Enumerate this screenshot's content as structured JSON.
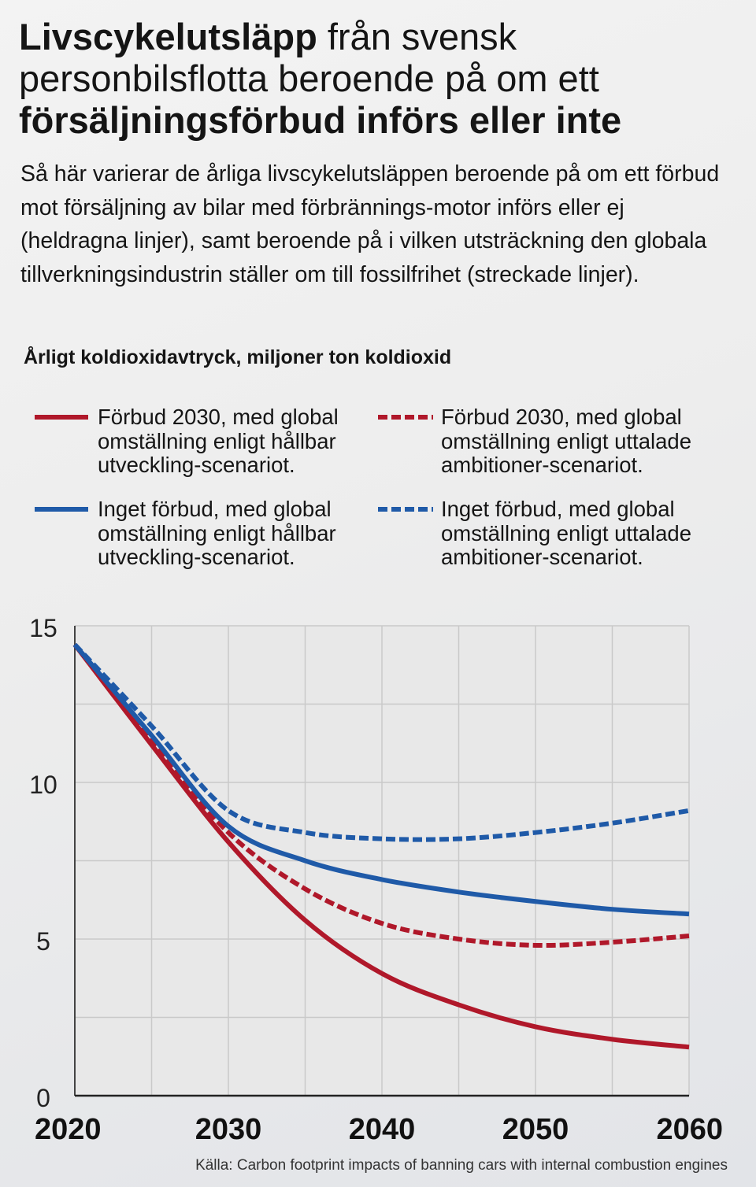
{
  "header": {
    "title_part1": "Livscykelutsläpp",
    "title_part2": " från svensk personbilsflotta beroende på om ett ",
    "title_part3": "försäljningsförbud införs eller inte",
    "subtitle": "Så här varierar de årliga livscykelutsläppen beroende på om ett förbud mot försäljning av bilar med förbrännings-motor införs eller ej (heldragna linjer), samt beroende på i vilken utsträckning den globala tillverkningsindustrin ställer om till fossilfrihet (streckade linjer).",
    "unit_label": "Årligt koldioxidavtryck, miljoner ton koldioxid"
  },
  "legend": [
    {
      "label": "Förbud 2030, med global\nomställning enligt hållbar\nutveckling-scenariot.",
      "color": "#b0182a",
      "dashed": false
    },
    {
      "label": "Förbud 2030, med global\nomställning enligt uttalade\nambitioner-scenariot.",
      "color": "#b0182a",
      "dashed": true
    },
    {
      "label": "Inget förbud, med global\nomställning enligt hållbar\nutveckling-scenariot.",
      "color": "#1f5aa8",
      "dashed": false
    },
    {
      "label": "Inget förbud, med global\nomställning enligt uttalade\nambitioner-scenariot.",
      "color": "#1f5aa8",
      "dashed": true
    }
  ],
  "chart_data": {
    "type": "line",
    "x_ticks": [
      2020,
      2030,
      2040,
      2050,
      2060
    ],
    "y_ticks": [
      0,
      5,
      10,
      15
    ],
    "xlim": [
      2020,
      2060
    ],
    "ylim": [
      0,
      15
    ],
    "grid": true,
    "x": [
      2020,
      2025,
      2030,
      2035,
      2040,
      2045,
      2050,
      2055,
      2060
    ],
    "series": [
      {
        "name": "Förbud 2030, med global omställning enligt hållbar utveckling-scenariot.",
        "color": "#b0182a",
        "dashed": false,
        "values": [
          14.4,
          11.2,
          8.1,
          5.6,
          3.9,
          2.9,
          2.2,
          1.8,
          1.55
        ]
      },
      {
        "name": "Förbud 2030, med global omställning enligt uttalade ambitioner-scenariot.",
        "color": "#b0182a",
        "dashed": true,
        "values": [
          14.4,
          11.3,
          8.4,
          6.6,
          5.5,
          5.0,
          4.8,
          4.9,
          5.1
        ]
      },
      {
        "name": "Inget förbud, med global omställning enligt hållbar utveckling-scenariot.",
        "color": "#1f5aa8",
        "dashed": false,
        "values": [
          14.4,
          11.5,
          8.6,
          7.5,
          6.9,
          6.5,
          6.2,
          5.95,
          5.8
        ]
      },
      {
        "name": "Inget förbud, med global omställning enligt uttalade ambitioner-scenariot.",
        "color": "#1f5aa8",
        "dashed": true,
        "values": [
          14.4,
          11.8,
          9.1,
          8.4,
          8.2,
          8.2,
          8.4,
          8.7,
          9.1
        ]
      }
    ]
  },
  "footer": {
    "source": "Källa:  Carbon footprint impacts of banning cars with internal combustion engines"
  }
}
